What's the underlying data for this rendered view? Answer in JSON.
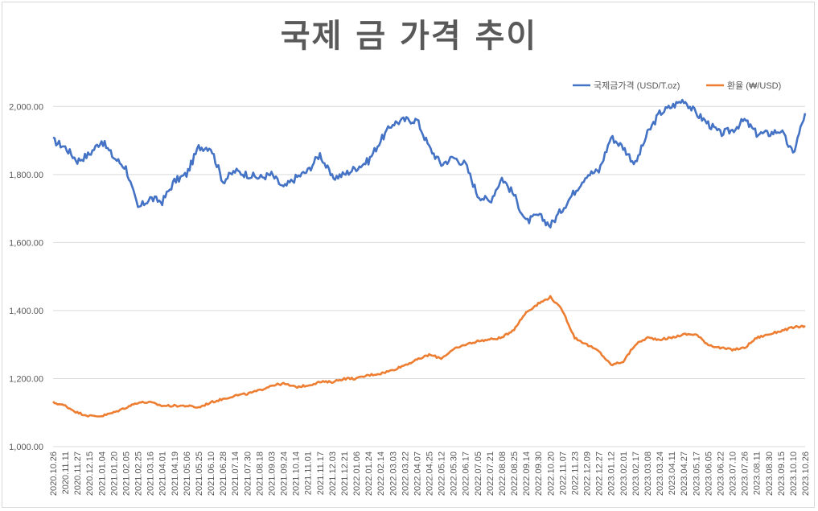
{
  "chart_data": {
    "type": "line",
    "title": "국제 금 가격 추이",
    "xlabel": "",
    "ylabel": "",
    "ylim": [
      1000,
      2100
    ],
    "y_ticks": [
      "1,000.00",
      "1,200.00",
      "1,400.00",
      "1,600.00",
      "1,800.00",
      "2,000.00"
    ],
    "y_tick_values": [
      1000,
      1200,
      1400,
      1600,
      1800,
      2000
    ],
    "gridlines": true,
    "legend_position": "top-right",
    "categories": [
      "2020.10.26",
      "2020.11.11",
      "2020.11.27",
      "2020.12.15",
      "2021.01.04",
      "2021.01.20",
      "2021.02.05",
      "2021.02.25",
      "2021.03.16",
      "2021.04.01",
      "2021.04.19",
      "2021.05.06",
      "2021.05.25",
      "2021.06.10",
      "2021.06.28",
      "2021.07.14",
      "2021.07.30",
      "2021.08.18",
      "2021.09.03",
      "2021.09.24",
      "2021.10.14",
      "2021.11.01",
      "2021.11.17",
      "2021.12.03",
      "2021.12.21",
      "2022.01.06",
      "2022.01.24",
      "2022.02.14",
      "2022.03.03",
      "2022.03.22",
      "2022.04.07",
      "2022.04.25",
      "2022.05.12",
      "2022.05.30",
      "2022.06.17",
      "2022.07.05",
      "2022.07.21",
      "2022.08.08",
      "2022.08.25",
      "2022.09.14",
      "2022.09.30",
      "2022.10.20",
      "2022.11.07",
      "2022.11.23",
      "2022.12.09",
      "2022.12.27",
      "2023.01.12",
      "2023.02.01",
      "2023.02.17",
      "2023.03.08",
      "2023.03.24",
      "2023.04.11",
      "2023.04.27",
      "2023.05.17",
      "2023.06.05",
      "2023.06.22",
      "2023.07.10",
      "2023.07.26",
      "2023.08.11",
      "2023.08.30",
      "2023.09.15",
      "2023.10.10",
      "2023.10.26"
    ],
    "series": [
      {
        "name": "국제금가격 (USD/T.oz)",
        "color": "#4472c4",
        "values": [
          1900,
          1880,
          1840,
          1860,
          1900,
          1850,
          1820,
          1700,
          1730,
          1720,
          1780,
          1800,
          1880,
          1880,
          1780,
          1810,
          1800,
          1790,
          1800,
          1760,
          1790,
          1810,
          1860,
          1790,
          1800,
          1820,
          1840,
          1900,
          1950,
          1960,
          1960,
          1880,
          1830,
          1850,
          1830,
          1740,
          1720,
          1790,
          1740,
          1660,
          1680,
          1650,
          1700,
          1750,
          1800,
          1810,
          1910,
          1880,
          1830,
          1920,
          1980,
          2000,
          2020,
          1980,
          1950,
          1920,
          1930,
          1960,
          1920,
          1920,
          1930,
          1860,
          1980
        ]
      },
      {
        "name": "환율 (₩/USD)",
        "color": "#ed7d31",
        "values": [
          1130,
          1120,
          1100,
          1090,
          1090,
          1100,
          1115,
          1130,
          1130,
          1120,
          1120,
          1120,
          1115,
          1130,
          1140,
          1150,
          1155,
          1165,
          1180,
          1185,
          1175,
          1180,
          1190,
          1190,
          1200,
          1200,
          1210,
          1215,
          1225,
          1240,
          1255,
          1270,
          1260,
          1285,
          1300,
          1310,
          1315,
          1320,
          1345,
          1395,
          1420,
          1440,
          1400,
          1320,
          1300,
          1280,
          1240,
          1250,
          1300,
          1320,
          1315,
          1320,
          1330,
          1330,
          1300,
          1290,
          1285,
          1290,
          1320,
          1330,
          1340,
          1350,
          1355
        ]
      }
    ]
  }
}
